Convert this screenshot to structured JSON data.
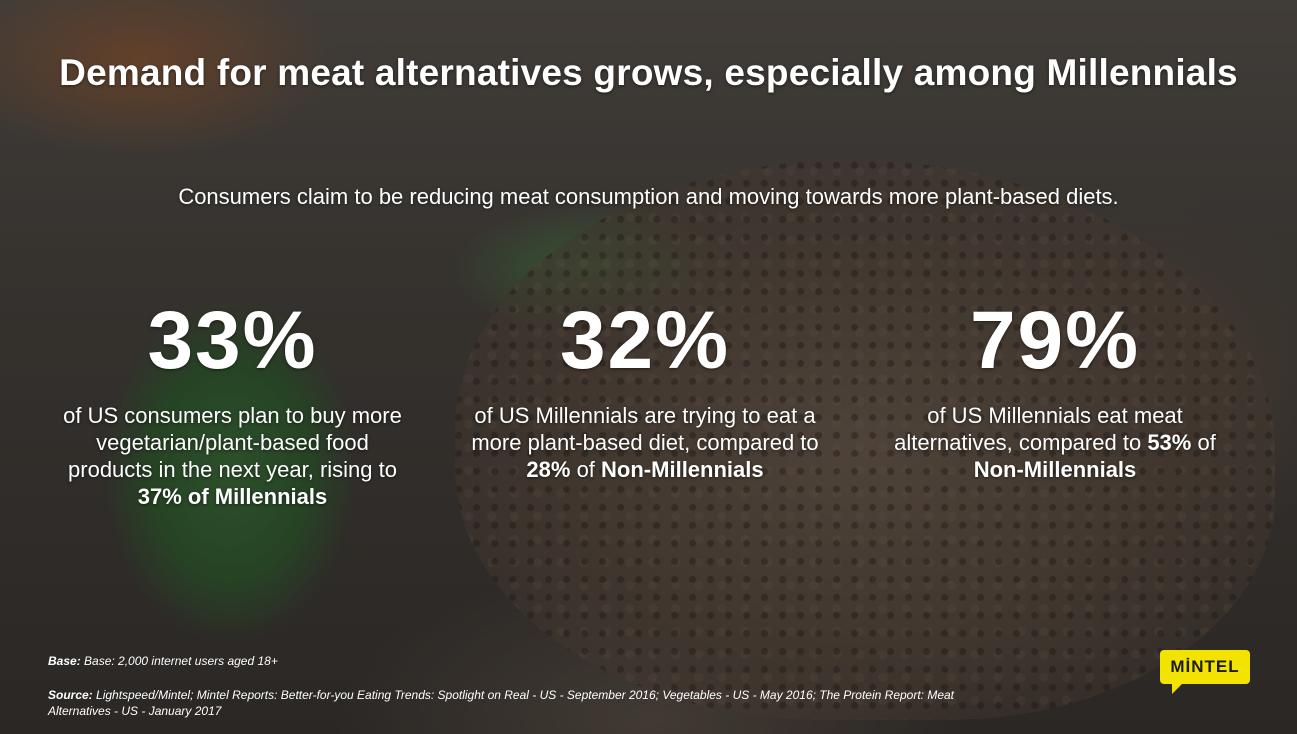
{
  "title": "Demand for meat alternatives grows, especially among Millennials",
  "subtitle": "Consumers claim to be reducing meat consumption and moving towards more plant-based diets.",
  "stats": [
    {
      "percent": "33%",
      "text": "of US consumers plan to buy more vegetarian/plant-based food products in the next year, rising to",
      "highlight": "37% of Millennials"
    },
    {
      "percent": "32%",
      "text_before": "of US Millennials are trying to eat a more plant-based diet, compared to",
      "highlight1": "28%",
      "text_middle": "of",
      "highlight2": "Non-Millennials"
    },
    {
      "percent": "79%",
      "text": "of US Millennials eat meat alternatives, compared to",
      "highlight1": "53%",
      "text_middle": "of",
      "highlight2": "Non-Millennials"
    }
  ],
  "base": {
    "label": "Base:",
    "text": "Base: 2,000 internet users aged 18+"
  },
  "source": {
    "label": "Source:",
    "text": "Lightspeed/Mintel; Mintel Reports: Better-for-you Eating Trends: Spotlight on Real - US - September 2016; Vegetables - US - May 2016; The Protein Report: Meat Alternatives - US - January 2017"
  },
  "logo": {
    "text": "MİNTEL"
  },
  "colors": {
    "logo_yellow": "#f2e300",
    "text": "#ffffff"
  }
}
